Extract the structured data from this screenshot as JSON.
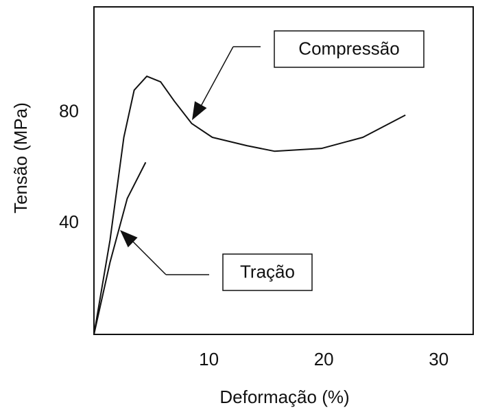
{
  "chart_data": {
    "type": "line",
    "x_label": "Deformação (%)",
    "y_label": "Tensão (MPa)",
    "xlim": [
      0,
      33
    ],
    "ylim": [
      0,
      118
    ],
    "xticks": [
      10,
      20,
      30
    ],
    "yticks": [
      40,
      80
    ],
    "series": [
      {
        "name": "Compressão",
        "color": "#111111",
        "x": [
          0,
          1.4,
          2.6,
          3.5,
          4.6,
          5.8,
          7.0,
          8.5,
          10.3,
          13.3,
          15.7,
          19.8,
          23.4,
          27.1
        ],
        "values": [
          0,
          34,
          71,
          88,
          93,
          91,
          84,
          76,
          71,
          68,
          66,
          67,
          71,
          79
        ]
      },
      {
        "name": "Tração",
        "color": "#111111",
        "x": [
          0,
          1.4,
          2.9,
          4.5
        ],
        "values": [
          0,
          26,
          49,
          62
        ]
      }
    ]
  }
}
